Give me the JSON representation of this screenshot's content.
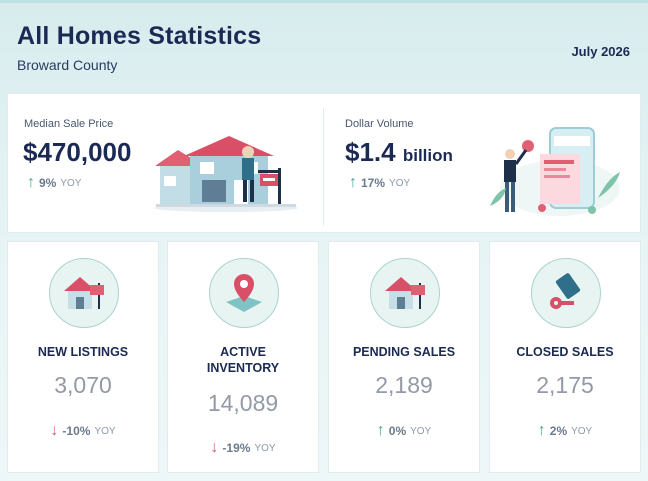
{
  "header": {
    "title": "All Homes Statistics",
    "subtitle": "Broward County",
    "date": "July 2026"
  },
  "median_sale_price": {
    "label": "Median Sale Price",
    "value": "$470,000",
    "change": "9%",
    "direction": "up",
    "tag": "YOY",
    "illustration": "house-for-sale-illustration"
  },
  "dollar_volume": {
    "label": "Dollar Volume",
    "value": "$1.4",
    "unit": "billion",
    "change": "17%",
    "direction": "up",
    "tag": "YOY",
    "illustration": "phone-payment-illustration"
  },
  "stats": [
    {
      "label_line1": "NEW LISTINGS",
      "label_line2": "",
      "value": "3,070",
      "change": "-10%",
      "direction": "down",
      "tag": "YOY",
      "icon": "house-sign-icon"
    },
    {
      "label_line1": "ACTIVE",
      "label_line2": "INVENTORY",
      "value": "14,089",
      "change": "-19%",
      "direction": "down",
      "tag": "YOY",
      "icon": "map-pin-icon"
    },
    {
      "label_line1": "PENDING SALES",
      "label_line2": "",
      "value": "2,189",
      "change": "0%",
      "direction": "up",
      "tag": "YOY",
      "icon": "house-sign-icon"
    },
    {
      "label_line1": "CLOSED SALES",
      "label_line2": "",
      "value": "2,175",
      "change": "2%",
      "direction": "up",
      "tag": "YOY",
      "icon": "key-icon"
    }
  ],
  "colors": {
    "navy": "#1b2a55",
    "up_arrow": "#4aa59e",
    "down_arrow": "#d75b7a",
    "icon_bg": "#e7f4f2"
  }
}
